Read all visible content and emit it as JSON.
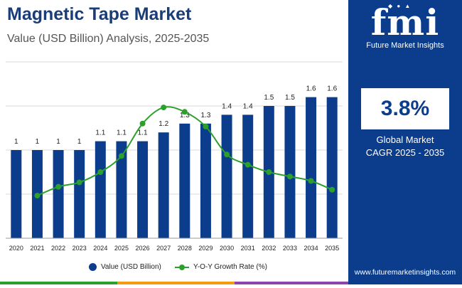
{
  "title": "Magnetic Tape Market",
  "subtitle": "Value (USD Billion) Analysis, 2025-2035",
  "brand": {
    "logo_text": "fmi",
    "name": "Future Market Insights",
    "website": "www.futuremarketinsights.com",
    "logo_icons": "◆ ● ▲"
  },
  "cagr": {
    "value": "3.8%",
    "label_line1": "Global Market",
    "label_line2": "CAGR 2025 - 2035"
  },
  "colors": {
    "bar": "#0b3d8c",
    "line": "#2ca02c",
    "panel": "#0b3d8c",
    "title": "#1a3d7a",
    "strip": [
      "#2ca02c",
      "#f39c12",
      "#8e44ad"
    ]
  },
  "legend": {
    "bar_label": "Value (USD Billion)",
    "line_label": "Y-O-Y Growth Rate (%)"
  },
  "chart_data": {
    "type": "bar",
    "categories": [
      "2020",
      "2021",
      "2022",
      "2023",
      "2024",
      "2025",
      "2026",
      "2027",
      "2028",
      "2029",
      "2030",
      "2031",
      "2032",
      "2033",
      "2034",
      "2035"
    ],
    "series": [
      {
        "name": "Value (USD Billion)",
        "type": "bar",
        "values": [
          1.0,
          1.0,
          1.0,
          1.0,
          1.1,
          1.1,
          1.1,
          1.2,
          1.3,
          1.3,
          1.4,
          1.4,
          1.5,
          1.5,
          1.6,
          1.6
        ],
        "labels": [
          "1",
          "1",
          "1",
          "1",
          "1.1",
          "1.1",
          "1.1",
          "1.2",
          "1.3",
          "1.3",
          "1.4",
          "1.4",
          "1.5",
          "1.5",
          "1.6",
          "1.6"
        ]
      },
      {
        "name": "Y-O-Y Growth Rate (%)",
        "type": "line",
        "x": [
          "2021",
          "2022",
          "2023",
          "2024",
          "2025",
          "2026",
          "2027",
          "2028",
          "2029",
          "2030",
          "2031",
          "2032",
          "2033",
          "2034",
          "2035"
        ],
        "values": [
          2.9,
          3.5,
          3.8,
          4.5,
          5.6,
          7.8,
          8.9,
          8.6,
          7.6,
          5.7,
          5.0,
          4.5,
          4.2,
          3.9,
          3.3
        ]
      }
    ],
    "ylim": [
      0,
      2.0
    ],
    "y2lim": [
      0,
      12
    ],
    "grid": true
  }
}
